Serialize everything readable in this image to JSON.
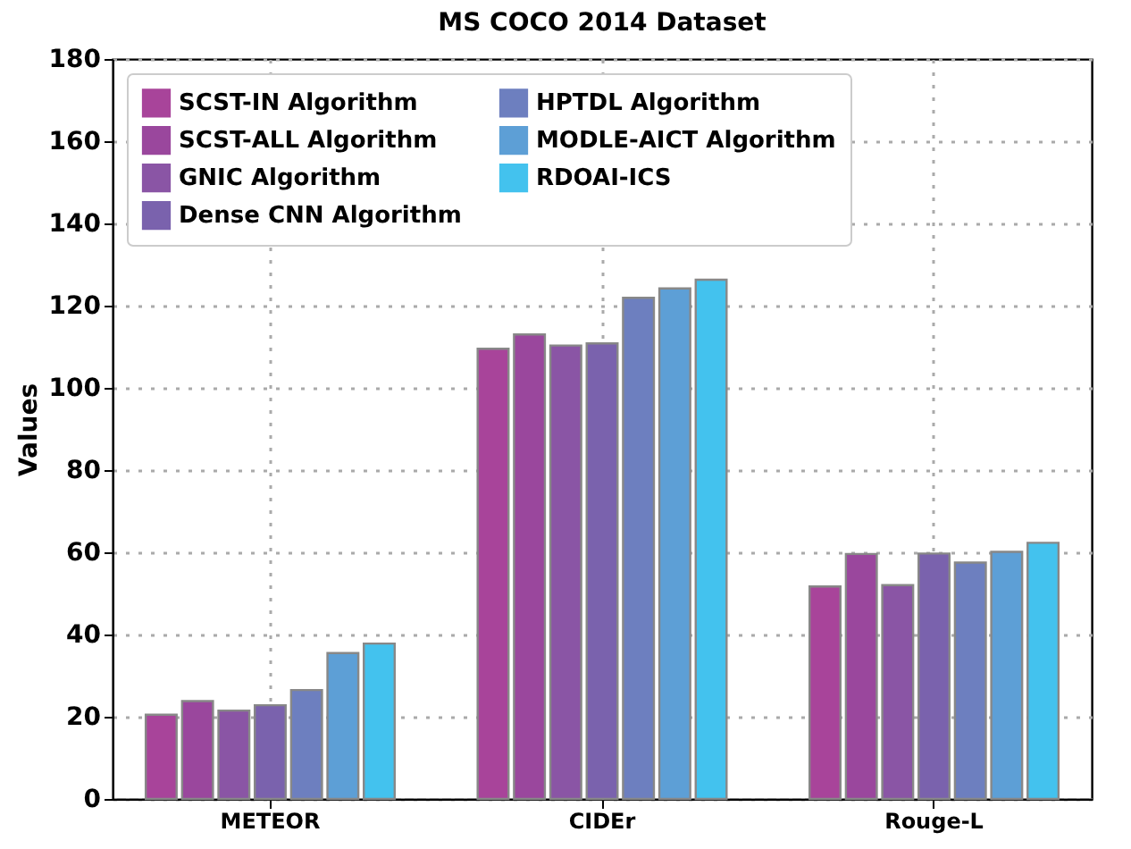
{
  "chart_data": {
    "type": "bar",
    "title": "MS COCO 2014 Dataset",
    "ylabel": "Values",
    "categories": [
      "METEOR",
      "CIDEr",
      "Rouge-L"
    ],
    "series": [
      {
        "name": "SCST-IN Algorithm",
        "color": "#a8449a",
        "values": [
          20.5,
          109.5,
          51.7
        ]
      },
      {
        "name": "SCST-ALL Algorithm",
        "color": "#9a479d",
        "values": [
          23.8,
          113,
          59.6
        ]
      },
      {
        "name": "GNIC Algorithm",
        "color": "#8a55a5",
        "values": [
          21.5,
          110.3,
          52
        ]
      },
      {
        "name": "Dense CNN Algorithm",
        "color": "#7a62ad",
        "values": [
          22.8,
          110.8,
          59.7
        ]
      },
      {
        "name": "HPTDL Algorithm",
        "color": "#6d7fbf",
        "values": [
          26.5,
          121.9,
          57.5
        ]
      },
      {
        "name": "MODLE-AICT Algorithm",
        "color": "#5d9fd6",
        "values": [
          35.5,
          124.2,
          60.1
        ]
      },
      {
        "name": "RDOAI-ICS",
        "color": "#43c2ee",
        "values": [
          37.8,
          126.3,
          62.3
        ]
      }
    ],
    "ylim": [
      0,
      180
    ],
    "yticks": [
      0,
      20,
      40,
      60,
      80,
      100,
      120,
      140,
      160,
      180
    ],
    "grid": true,
    "legend": "top left"
  }
}
